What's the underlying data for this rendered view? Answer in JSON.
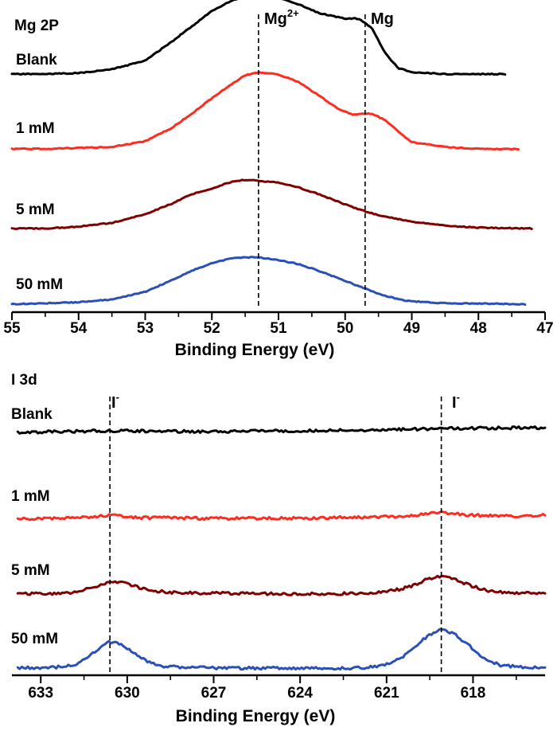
{
  "figure": "XPS spectra",
  "chart_data": [
    {
      "type": "line",
      "panel": "top",
      "title": "Mg 2P",
      "xlabel": "Binding Energy (eV)",
      "ylabel": "",
      "xlim": [
        55,
        47
      ],
      "x_reversed": true,
      "ticks": [
        "55",
        "54",
        "53",
        "52",
        "51",
        "50",
        "49",
        "48",
        "47"
      ],
      "reference_lines": [
        {
          "label": "Mg",
          "sup": "2+",
          "x": 51.3
        },
        {
          "label": "Mg",
          "sup": "",
          "x": 49.7
        }
      ],
      "series": [
        {
          "name": "Blank",
          "color": "#000000",
          "offset": 3,
          "points": [
            [
              55.0,
              0.0
            ],
            [
              54.5,
              0.0
            ],
            [
              54.0,
              0.01
            ],
            [
              53.5,
              0.05
            ],
            [
              53.0,
              0.14
            ],
            [
              52.6,
              0.34
            ],
            [
              52.3,
              0.5
            ],
            [
              52.0,
              0.66
            ],
            [
              51.7,
              0.77
            ],
            [
              51.4,
              0.82
            ],
            [
              51.2,
              0.84
            ],
            [
              51.0,
              0.8
            ],
            [
              50.7,
              0.73
            ],
            [
              50.4,
              0.64
            ],
            [
              50.0,
              0.58
            ],
            [
              49.8,
              0.58
            ],
            [
              49.6,
              0.48
            ],
            [
              49.4,
              0.22
            ],
            [
              49.2,
              0.06
            ],
            [
              49.0,
              0.02
            ],
            [
              48.5,
              0.0
            ],
            [
              48.0,
              0.0
            ],
            [
              47.6,
              0.0
            ]
          ]
        },
        {
          "name": "1 mM",
          "color": "#ff2b1f",
          "offset": 2,
          "points": [
            [
              55.0,
              0.0
            ],
            [
              54.5,
              0.0
            ],
            [
              54.0,
              0.01
            ],
            [
              53.5,
              0.02
            ],
            [
              53.0,
              0.08
            ],
            [
              52.6,
              0.22
            ],
            [
              52.3,
              0.37
            ],
            [
              52.0,
              0.53
            ],
            [
              51.7,
              0.68
            ],
            [
              51.5,
              0.77
            ],
            [
              51.3,
              0.8
            ],
            [
              51.0,
              0.78
            ],
            [
              50.7,
              0.7
            ],
            [
              50.4,
              0.56
            ],
            [
              50.1,
              0.42
            ],
            [
              49.9,
              0.36
            ],
            [
              49.6,
              0.37
            ],
            [
              49.4,
              0.3
            ],
            [
              49.2,
              0.18
            ],
            [
              49.0,
              0.07
            ],
            [
              48.5,
              0.02
            ],
            [
              48.0,
              0.0
            ],
            [
              47.4,
              0.0
            ]
          ]
        },
        {
          "name": "5 mM",
          "color": "#800000",
          "offset": 1,
          "points": [
            [
              55.0,
              0.0
            ],
            [
              54.5,
              0.0
            ],
            [
              54.0,
              0.02
            ],
            [
              53.5,
              0.06
            ],
            [
              53.0,
              0.15
            ],
            [
              52.6,
              0.26
            ],
            [
              52.3,
              0.36
            ],
            [
              52.0,
              0.42
            ],
            [
              51.7,
              0.49
            ],
            [
              51.5,
              0.51
            ],
            [
              51.3,
              0.5
            ],
            [
              51.0,
              0.48
            ],
            [
              50.7,
              0.43
            ],
            [
              50.4,
              0.36
            ],
            [
              50.1,
              0.28
            ],
            [
              49.8,
              0.2
            ],
            [
              49.5,
              0.14
            ],
            [
              49.0,
              0.07
            ],
            [
              48.5,
              0.03
            ],
            [
              48.0,
              0.01
            ],
            [
              47.2,
              0.0
            ]
          ]
        },
        {
          "name": "50 mM",
          "color": "#2b4fb8",
          "offset": 0,
          "points": [
            [
              55.0,
              0.0
            ],
            [
              54.5,
              0.01
            ],
            [
              54.0,
              0.02
            ],
            [
              53.5,
              0.05
            ],
            [
              53.0,
              0.13
            ],
            [
              52.6,
              0.25
            ],
            [
              52.3,
              0.35
            ],
            [
              52.0,
              0.43
            ],
            [
              51.7,
              0.48
            ],
            [
              51.5,
              0.49
            ],
            [
              51.3,
              0.49
            ],
            [
              51.0,
              0.46
            ],
            [
              50.7,
              0.42
            ],
            [
              50.4,
              0.35
            ],
            [
              50.1,
              0.27
            ],
            [
              49.8,
              0.19
            ],
            [
              49.5,
              0.11
            ],
            [
              49.2,
              0.05
            ],
            [
              49.0,
              0.03
            ],
            [
              48.5,
              0.01
            ],
            [
              47.3,
              0.0
            ]
          ]
        }
      ]
    },
    {
      "type": "line",
      "panel": "bottom",
      "title": "I 3d",
      "xlabel": "Binding Energy (eV)",
      "ylabel": "",
      "xlim": [
        634,
        615.5
      ],
      "x_reversed": true,
      "ticks": [
        "633",
        "630",
        "627",
        "624",
        "621",
        "618"
      ],
      "reference_lines": [
        {
          "label": "I",
          "sup": "-",
          "x": 630.6
        },
        {
          "label": "I",
          "sup": "-",
          "x": 619.1
        }
      ],
      "series": [
        {
          "name": "Blank",
          "color": "#000000",
          "offset": 3,
          "points": [
            [
              633.8,
              0.0
            ],
            [
              630.6,
              0.02
            ],
            [
              627.0,
              0.01
            ],
            [
              624.0,
              0.02
            ],
            [
              621.0,
              0.03
            ],
            [
              619.1,
              0.05
            ],
            [
              615.5,
              0.06
            ]
          ]
        },
        {
          "name": "1 mM",
          "color": "#ff2b1f",
          "offset": 2,
          "points": [
            [
              633.8,
              0.0
            ],
            [
              631.5,
              0.02
            ],
            [
              630.6,
              0.05
            ],
            [
              629.8,
              0.02
            ],
            [
              627.0,
              0.01
            ],
            [
              624.0,
              0.01
            ],
            [
              621.0,
              0.03
            ],
            [
              620.0,
              0.05
            ],
            [
              619.1,
              0.09
            ],
            [
              618.2,
              0.05
            ],
            [
              616.5,
              0.04
            ],
            [
              615.5,
              0.05
            ]
          ]
        },
        {
          "name": "5 mM",
          "color": "#800000",
          "offset": 1,
          "points": [
            [
              633.8,
              0.0
            ],
            [
              632.0,
              0.01
            ],
            [
              631.3,
              0.07
            ],
            [
              630.8,
              0.13
            ],
            [
              630.3,
              0.15
            ],
            [
              629.8,
              0.11
            ],
            [
              629.3,
              0.05
            ],
            [
              628.5,
              0.02
            ],
            [
              627.0,
              0.01
            ],
            [
              624.0,
              0.0
            ],
            [
              621.5,
              0.01
            ],
            [
              620.5,
              0.06
            ],
            [
              620.0,
              0.12
            ],
            [
              619.5,
              0.2
            ],
            [
              619.1,
              0.22
            ],
            [
              618.7,
              0.2
            ],
            [
              618.2,
              0.12
            ],
            [
              617.5,
              0.04
            ],
            [
              616.5,
              0.01
            ],
            [
              615.5,
              0.01
            ]
          ]
        },
        {
          "name": "50 mM",
          "color": "#2b4fb8",
          "offset": 0,
          "points": [
            [
              633.8,
              0.0
            ],
            [
              632.5,
              0.01
            ],
            [
              631.8,
              0.05
            ],
            [
              631.3,
              0.16
            ],
            [
              630.8,
              0.3
            ],
            [
              630.6,
              0.33
            ],
            [
              630.3,
              0.31
            ],
            [
              629.8,
              0.2
            ],
            [
              629.3,
              0.08
            ],
            [
              628.7,
              0.02
            ],
            [
              627.0,
              0.0
            ],
            [
              624.0,
              0.0
            ],
            [
              622.0,
              0.0
            ],
            [
              621.2,
              0.03
            ],
            [
              620.5,
              0.12
            ],
            [
              620.0,
              0.28
            ],
            [
              619.5,
              0.42
            ],
            [
              619.1,
              0.48
            ],
            [
              618.7,
              0.44
            ],
            [
              618.2,
              0.3
            ],
            [
              617.6,
              0.12
            ],
            [
              617.0,
              0.03
            ],
            [
              616.0,
              0.01
            ],
            [
              615.5,
              0.01
            ]
          ]
        }
      ]
    }
  ]
}
